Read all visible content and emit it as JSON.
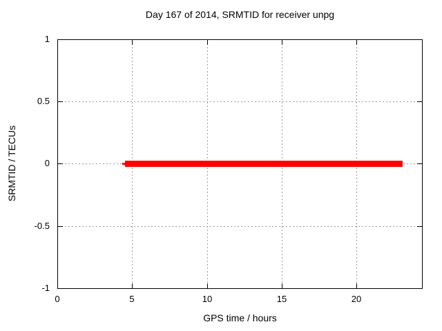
{
  "chart_data": {
    "type": "line",
    "title": "Day 167 of 2014, SRMTID for receiver unpg",
    "xlabel": "GPS time / hours",
    "ylabel": "SRMTID / TECUs",
    "xlim": [
      0,
      24.4
    ],
    "ylim": [
      -1,
      1
    ],
    "x_ticks": [
      "0",
      "5",
      "10",
      "15",
      "20"
    ],
    "y_ticks": [
      "1",
      "0.5",
      "0",
      "-0.5",
      "-1"
    ],
    "grid": "dashed gray, at every labeled tick; ticks mirrored on all four borders",
    "legend_position": "none",
    "series": [
      {
        "name": "SRMTID",
        "color": "#ff0000",
        "style": "thick solid horizontal line",
        "x": [
          4.5,
          23.1
        ],
        "y": [
          0,
          0
        ],
        "description": "constant value 0 TECUs from about 4.5 h to about 23.1 h GPS time"
      }
    ]
  },
  "colors": {
    "background": "#ffffff",
    "axis_and_text": "#000000",
    "grid": "#9a9a9a",
    "series_red": "#ff0000"
  }
}
